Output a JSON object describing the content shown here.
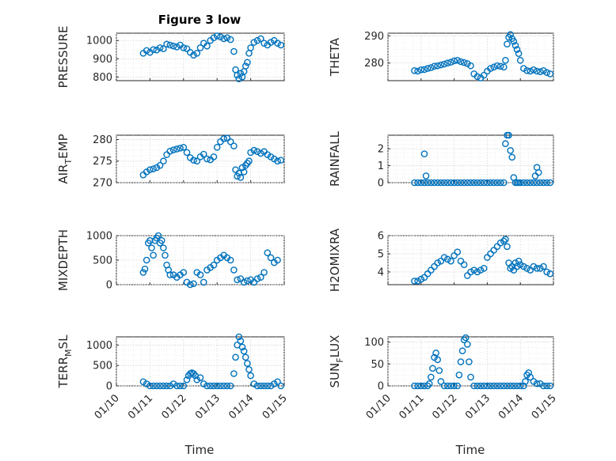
{
  "figure_title": "Figure 3 low",
  "colors": {
    "marker": "#0072BD",
    "axis": "#262626",
    "grid": "#d6d6d6",
    "background": "#ffffff"
  },
  "chart_data": [
    {
      "type": "scatter",
      "ylabel": "PRESSURE",
      "ylabel_sub": "",
      "ylabel_tail": "",
      "xlim": [
        0,
        5
      ],
      "ylim": [
        780,
        1040
      ],
      "yticks": [
        800,
        900,
        1000
      ],
      "ytick_labels": [
        "800",
        "900",
        "1000"
      ],
      "x": [
        0.8,
        0.9,
        1.0,
        1.1,
        1.2,
        1.3,
        1.4,
        1.5,
        1.6,
        1.7,
        1.8,
        1.9,
        2.0,
        2.1,
        2.2,
        2.3,
        2.4,
        2.5,
        2.6,
        2.7,
        2.8,
        2.9,
        3.0,
        3.1,
        3.2,
        3.3,
        3.4,
        3.5,
        3.55,
        3.6,
        3.65,
        3.7,
        3.75,
        3.8,
        3.85,
        3.9,
        3.95,
        4.0,
        4.1,
        4.2,
        4.3,
        4.4,
        4.5,
        4.6,
        4.7,
        4.8,
        4.9
      ],
      "y": [
        930,
        945,
        935,
        950,
        948,
        960,
        955,
        980,
        975,
        970,
        965,
        975,
        960,
        955,
        935,
        920,
        930,
        960,
        985,
        970,
        1000,
        1015,
        1025,
        1020,
        1010,
        1015,
        1005,
        940,
        840,
        810,
        790,
        820,
        800,
        830,
        860,
        880,
        930,
        960,
        990,
        1000,
        1010,
        985,
        975,
        990,
        1000,
        985,
        975
      ]
    },
    {
      "type": "scatter",
      "ylabel": "THETA",
      "ylabel_sub": "",
      "ylabel_tail": "",
      "xlim": [
        0,
        5
      ],
      "ylim": [
        273.5,
        291
      ],
      "yticks": [
        280,
        290
      ],
      "ytick_labels": [
        "280",
        "290"
      ],
      "x": [
        0.8,
        0.9,
        1.0,
        1.1,
        1.2,
        1.3,
        1.4,
        1.5,
        1.6,
        1.7,
        1.8,
        1.9,
        2.0,
        2.1,
        2.2,
        2.3,
        2.4,
        2.5,
        2.6,
        2.7,
        2.8,
        2.9,
        3.0,
        3.1,
        3.2,
        3.3,
        3.4,
        3.5,
        3.55,
        3.6,
        3.65,
        3.7,
        3.75,
        3.8,
        3.85,
        3.9,
        3.95,
        4.0,
        4.1,
        4.2,
        4.3,
        4.4,
        4.5,
        4.6,
        4.7,
        4.8,
        4.9
      ],
      "y": [
        277.2,
        277.0,
        277.5,
        277.6,
        278.0,
        278.3,
        278.8,
        279.0,
        279.3,
        279.6,
        280.0,
        280.3,
        280.8,
        281.0,
        280.5,
        280.2,
        279.8,
        279.0,
        276.0,
        275.0,
        274.5,
        275.5,
        277.0,
        278.0,
        278.5,
        279.0,
        278.8,
        278.5,
        281.0,
        287.0,
        289.5,
        290.5,
        289.0,
        288.0,
        286.5,
        285.0,
        283.5,
        281.0,
        278.0,
        277.2,
        277.0,
        277.5,
        277.0,
        276.8,
        277.2,
        276.5,
        276.0
      ]
    },
    {
      "type": "scatter",
      "ylabel": "AIR",
      "ylabel_sub": "T",
      "ylabel_tail": "EMP",
      "xlim": [
        0,
        5
      ],
      "ylim": [
        270,
        281
      ],
      "yticks": [
        270,
        275,
        280
      ],
      "ytick_labels": [
        "270",
        "275",
        "280"
      ],
      "x": [
        0.8,
        0.9,
        1.0,
        1.1,
        1.2,
        1.3,
        1.4,
        1.5,
        1.6,
        1.7,
        1.8,
        1.9,
        2.0,
        2.1,
        2.2,
        2.3,
        2.4,
        2.5,
        2.6,
        2.7,
        2.8,
        2.9,
        3.0,
        3.1,
        3.2,
        3.3,
        3.4,
        3.5,
        3.55,
        3.6,
        3.65,
        3.7,
        3.75,
        3.8,
        3.85,
        3.9,
        3.95,
        4.0,
        4.1,
        4.2,
        4.3,
        4.4,
        4.5,
        4.6,
        4.7,
        4.8,
        4.9
      ],
      "y": [
        271.8,
        272.5,
        273.0,
        273.2,
        273.5,
        274.0,
        275.0,
        276.5,
        277.3,
        277.6,
        277.8,
        278.0,
        278.2,
        277.0,
        275.8,
        275.2,
        275.0,
        276.0,
        276.6,
        275.5,
        275.3,
        276.0,
        278.2,
        279.5,
        280.2,
        280.3,
        279.5,
        278.5,
        273.0,
        271.5,
        272.2,
        271.2,
        273.5,
        272.5,
        274.0,
        274.5,
        275.0,
        277.0,
        277.5,
        277.2,
        276.8,
        277.2,
        276.5,
        276.0,
        275.5,
        275.0,
        275.2
      ]
    },
    {
      "type": "scatter",
      "ylabel": "RAINFALL",
      "ylabel_sub": "",
      "ylabel_tail": "",
      "xlim": [
        0,
        5
      ],
      "ylim": [
        0,
        2.8
      ],
      "yticks": [
        0,
        1,
        2
      ],
      "ytick_labels": [
        "0",
        "1",
        "2"
      ],
      "x": [
        0.8,
        0.9,
        1.0,
        1.1,
        1.2,
        1.3,
        1.4,
        1.5,
        1.6,
        1.7,
        1.8,
        1.9,
        2.0,
        2.1,
        2.2,
        2.3,
        2.4,
        2.5,
        2.6,
        2.7,
        2.8,
        2.9,
        3.0,
        3.1,
        3.2,
        3.3,
        3.4,
        3.5,
        3.55,
        3.6,
        3.65,
        3.7,
        3.75,
        3.8,
        3.85,
        3.9,
        3.95,
        4.0,
        4.1,
        4.2,
        4.3,
        4.4,
        4.5,
        4.6,
        4.7,
        4.8,
        4.9,
        1.1,
        1.15,
        4.45,
        4.5,
        4.55
      ],
      "y": [
        0,
        0,
        0,
        0,
        0,
        0,
        0,
        0,
        0,
        0,
        0,
        0,
        0,
        0,
        0,
        0,
        0,
        0,
        0,
        0,
        0,
        0,
        0,
        0,
        0,
        0,
        0,
        0,
        2.3,
        2.8,
        2.8,
        1.9,
        1.5,
        0.3,
        0,
        0,
        0,
        0,
        0,
        0,
        0,
        0,
        0,
        0,
        0,
        0,
        0,
        1.7,
        0.4,
        0.4,
        0.9,
        0.6
      ]
    },
    {
      "type": "scatter",
      "ylabel": "MIXDEPTH",
      "ylabel_sub": "",
      "ylabel_tail": "",
      "xlim": [
        0,
        5
      ],
      "ylim": [
        0,
        1000
      ],
      "yticks": [
        0,
        500,
        1000
      ],
      "ytick_labels": [
        "0",
        "500",
        "1000"
      ],
      "x": [
        0.8,
        0.85,
        0.9,
        0.95,
        1.0,
        1.05,
        1.1,
        1.15,
        1.2,
        1.25,
        1.3,
        1.35,
        1.4,
        1.45,
        1.5,
        1.55,
        1.6,
        1.7,
        1.8,
        1.9,
        2.0,
        2.1,
        2.2,
        2.3,
        2.4,
        2.5,
        2.6,
        2.7,
        2.8,
        2.9,
        3.0,
        3.1,
        3.2,
        3.3,
        3.4,
        3.5,
        3.6,
        3.7,
        3.8,
        3.9,
        4.0,
        4.1,
        4.2,
        4.3,
        4.4,
        4.5,
        4.6,
        4.7,
        4.8
      ],
      "y": [
        250,
        320,
        500,
        850,
        900,
        750,
        600,
        900,
        950,
        1000,
        850,
        900,
        750,
        600,
        400,
        300,
        200,
        200,
        150,
        200,
        250,
        50,
        0,
        20,
        250,
        200,
        50,
        300,
        350,
        400,
        500,
        550,
        600,
        550,
        500,
        300,
        100,
        120,
        50,
        80,
        100,
        50,
        120,
        150,
        250,
        650,
        550,
        450,
        500
      ]
    },
    {
      "type": "scatter",
      "ylabel": "H2OMIXRA",
      "ylabel_sub": "",
      "ylabel_tail": "",
      "xlim": [
        0,
        5
      ],
      "ylim": [
        3.3,
        6
      ],
      "yticks": [
        4,
        5,
        6
      ],
      "ytick_labels": [
        "4",
        "5",
        "6"
      ],
      "x": [
        0.8,
        0.9,
        1.0,
        1.1,
        1.2,
        1.3,
        1.4,
        1.5,
        1.6,
        1.7,
        1.8,
        1.9,
        2.0,
        2.1,
        2.2,
        2.3,
        2.4,
        2.5,
        2.6,
        2.7,
        2.8,
        2.9,
        3.0,
        3.1,
        3.2,
        3.3,
        3.4,
        3.5,
        3.55,
        3.6,
        3.65,
        3.7,
        3.75,
        3.8,
        3.85,
        3.9,
        3.95,
        4.0,
        4.1,
        4.2,
        4.3,
        4.4,
        4.5,
        4.6,
        4.7,
        4.8,
        4.9
      ],
      "y": [
        3.5,
        3.5,
        3.6,
        3.7,
        3.9,
        4.1,
        4.3,
        4.5,
        4.6,
        4.8,
        4.7,
        4.6,
        4.9,
        5.1,
        4.6,
        4.4,
        3.8,
        4.0,
        4.1,
        4.0,
        4.1,
        4.2,
        4.8,
        5.0,
        5.2,
        5.4,
        5.6,
        5.7,
        5.8,
        5.4,
        4.5,
        4.2,
        4.3,
        4.1,
        4.5,
        4.3,
        4.6,
        4.4,
        4.3,
        4.2,
        4.1,
        4.3,
        4.2,
        4.2,
        4.3,
        4.0,
        3.9
      ]
    },
    {
      "type": "scatter",
      "ylabel": "TERR",
      "ylabel_sub": "M",
      "ylabel_tail": "SL",
      "xlim": [
        0,
        5
      ],
      "ylim": [
        0,
        1200
      ],
      "yticks": [
        0,
        500,
        1000
      ],
      "ytick_labels": [
        "0",
        "500",
        "1000"
      ],
      "x": [
        0.8,
        0.9,
        1.0,
        1.1,
        1.2,
        1.3,
        1.4,
        1.5,
        1.6,
        1.7,
        1.8,
        1.9,
        2.0,
        2.1,
        2.15,
        2.2,
        2.25,
        2.3,
        2.35,
        2.4,
        2.5,
        2.6,
        2.7,
        2.8,
        2.9,
        3.0,
        3.1,
        3.2,
        3.3,
        3.4,
        3.5,
        3.55,
        3.6,
        3.65,
        3.7,
        3.75,
        3.8,
        3.85,
        3.9,
        3.95,
        4.0,
        4.1,
        4.2,
        4.3,
        4.4,
        4.5,
        4.6,
        4.7,
        4.8,
        4.9
      ],
      "y": [
        100,
        50,
        0,
        0,
        0,
        0,
        0,
        0,
        0,
        50,
        0,
        0,
        0,
        150,
        250,
        300,
        320,
        300,
        250,
        150,
        200,
        50,
        0,
        0,
        0,
        0,
        0,
        0,
        0,
        0,
        300,
        700,
        1000,
        1200,
        1100,
        950,
        850,
        700,
        550,
        400,
        250,
        50,
        0,
        0,
        0,
        0,
        0,
        50,
        100,
        0
      ]
    },
    {
      "type": "scatter",
      "ylabel": "SUN",
      "ylabel_sub": "F",
      "ylabel_tail": "LUX",
      "xlim": [
        0,
        5
      ],
      "ylim": [
        0,
        112
      ],
      "yticks": [
        0,
        50,
        100
      ],
      "ytick_labels": [
        "0",
        "50",
        "100"
      ],
      "x": [
        0.8,
        0.9,
        1.0,
        1.1,
        1.2,
        1.25,
        1.3,
        1.35,
        1.4,
        1.45,
        1.5,
        1.55,
        1.6,
        1.7,
        1.8,
        1.9,
        2.0,
        2.1,
        2.15,
        2.2,
        2.25,
        2.3,
        2.35,
        2.4,
        2.45,
        2.5,
        2.6,
        2.7,
        2.8,
        2.9,
        3.0,
        3.1,
        3.2,
        3.3,
        3.4,
        3.5,
        3.6,
        3.7,
        3.8,
        3.9,
        4.0,
        4.1,
        4.15,
        4.2,
        4.25,
        4.3,
        4.4,
        4.5,
        4.6,
        4.7,
        4.8,
        4.9
      ],
      "y": [
        0,
        0,
        0,
        0,
        0,
        5,
        20,
        40,
        65,
        75,
        60,
        35,
        10,
        0,
        0,
        0,
        0,
        0,
        25,
        55,
        80,
        105,
        110,
        95,
        55,
        20,
        0,
        0,
        0,
        0,
        0,
        0,
        0,
        0,
        0,
        0,
        0,
        0,
        0,
        0,
        0,
        0,
        10,
        25,
        30,
        20,
        10,
        5,
        5,
        0,
        0,
        0
      ]
    }
  ],
  "xtick_labels": [
    "01/10",
    "01/11",
    "01/12",
    "01/13",
    "01/14",
    "01/15"
  ],
  "xlabel": "Time"
}
